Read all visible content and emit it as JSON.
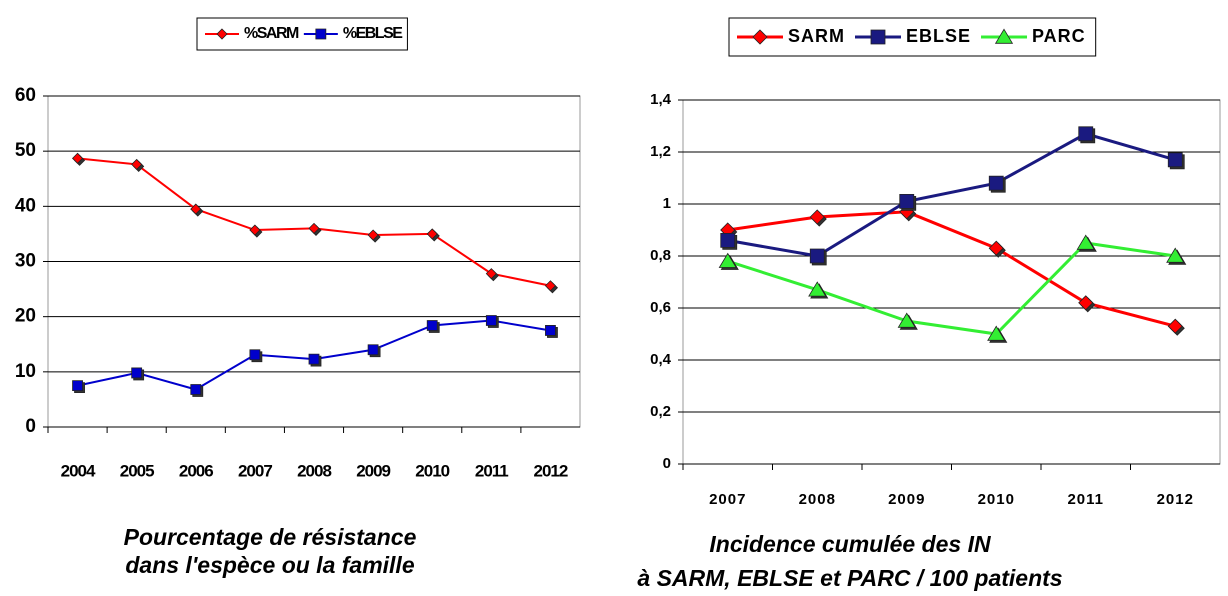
{
  "chart_data": [
    {
      "type": "line",
      "caption": [
        "Pourcentage de résistance",
        "dans l'espèce ou la famille"
      ],
      "categories": [
        "2004",
        "2005",
        "2006",
        "2007",
        "2008",
        "2009",
        "2010",
        "2011",
        "2012"
      ],
      "series": [
        {
          "name": "%SARM",
          "color": "#ff0000",
          "marker": "diamond",
          "values": [
            48.7,
            47.6,
            39.5,
            35.7,
            36.0,
            34.8,
            35.0,
            27.8,
            25.6
          ]
        },
        {
          "name": "%EBLSE",
          "color": "#0000cc",
          "marker": "square",
          "values": [
            7.5,
            9.8,
            6.8,
            13.1,
            12.3,
            14.0,
            18.4,
            19.3,
            17.5
          ]
        }
      ],
      "ylim": [
        0,
        60
      ],
      "yticks": [
        0,
        10,
        20,
        30,
        40,
        50,
        60
      ],
      "grid": true
    },
    {
      "type": "line",
      "caption": [
        "Incidence cumulée des IN",
        "à SARM, EBLSE et PARC / 100 patients"
      ],
      "categories": [
        "2007",
        "2008",
        "2009",
        "2010",
        "2011",
        "2012"
      ],
      "series": [
        {
          "name": "SARM",
          "color": "#ff0000",
          "marker": "diamond",
          "values": [
            0.9,
            0.95,
            0.97,
            0.83,
            0.62,
            0.53
          ]
        },
        {
          "name": "EBLSE",
          "color": "#1a1a80",
          "marker": "square",
          "values": [
            0.86,
            0.8,
            1.01,
            1.08,
            1.27,
            1.17
          ]
        },
        {
          "name": "PARC",
          "color": "#33ee33",
          "marker": "triangle",
          "values": [
            0.78,
            0.67,
            0.55,
            0.5,
            0.85,
            0.8
          ]
        }
      ],
      "ylim": [
        0,
        1.4
      ],
      "yticks": [
        0,
        {
          "value": 0.2,
          "label": "0,2"
        },
        {
          "value": 0.4,
          "label": "0,4"
        },
        {
          "value": 0.6,
          "label": "0,6"
        },
        {
          "value": 0.8,
          "label": "0,8"
        },
        1,
        {
          "value": 1.2,
          "label": "1,2"
        },
        {
          "value": 1.4,
          "label": "1,4"
        }
      ],
      "grid": true
    }
  ]
}
